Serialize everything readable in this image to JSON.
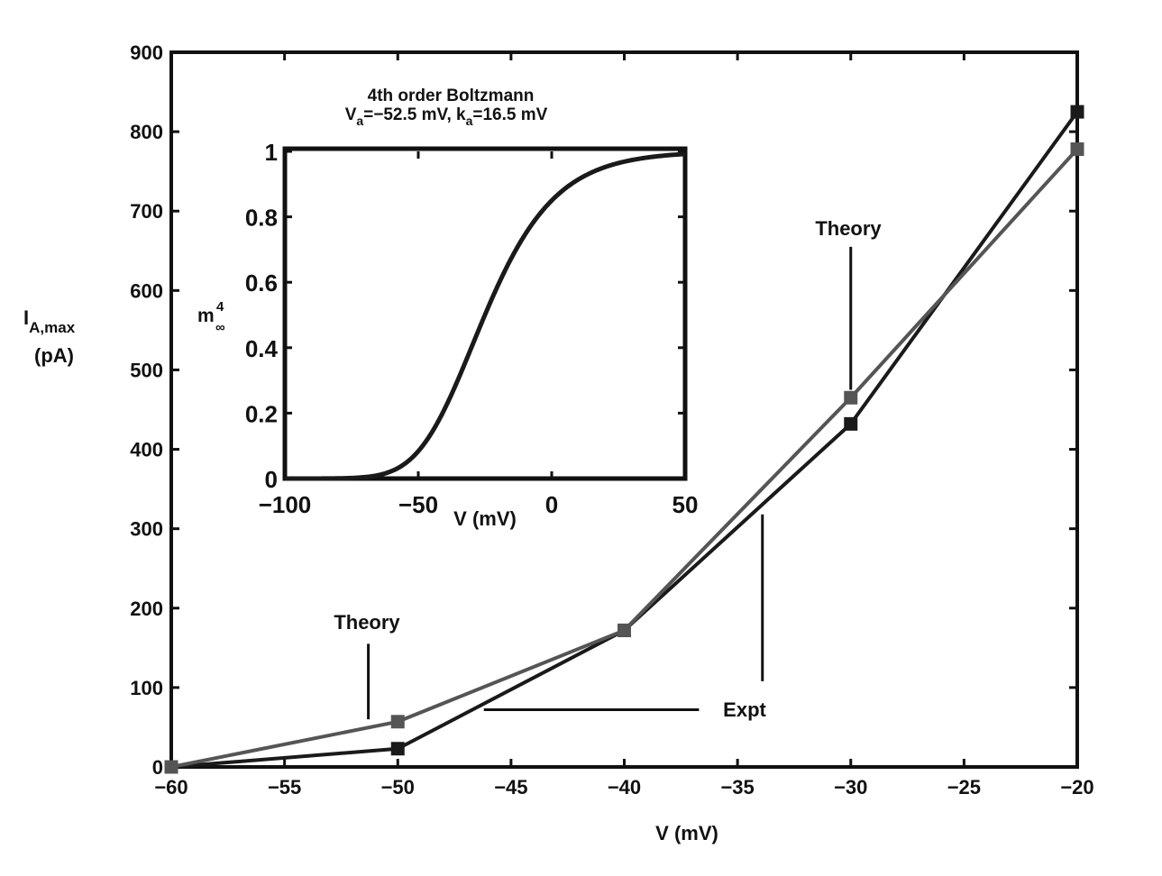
{
  "colors": {
    "expt": "#1a1a1a",
    "theory": "#555555",
    "axis": "#111111"
  },
  "chart_data": [
    {
      "type": "line",
      "title": "",
      "xlabel": "V (mV)",
      "ylabel_main": "I",
      "ylabel_sub": "A,max",
      "ylabel_unit": "(pA)",
      "xlim": [
        -60,
        -20
      ],
      "ylim": [
        0,
        900
      ],
      "x_ticks": [
        -60,
        -55,
        -50,
        -45,
        -40,
        -35,
        -30,
        -25,
        -20
      ],
      "x_tick_labels": [
        "−60",
        "−55",
        "−50",
        "−45",
        "−40",
        "−35",
        "−30",
        "−25",
        "−20"
      ],
      "y_ticks": [
        0,
        100,
        200,
        300,
        400,
        500,
        600,
        700,
        800,
        900
      ],
      "y_tick_labels": [
        "0",
        "100",
        "200",
        "300",
        "400",
        "500",
        "600",
        "700",
        "800",
        "900"
      ],
      "series": [
        {
          "name": "Expt",
          "x": [
            -60,
            -50,
            -40,
            -30,
            -20
          ],
          "y": [
            0,
            23,
            172,
            432,
            825
          ]
        },
        {
          "name": "Theory",
          "x": [
            -60,
            -50,
            -40,
            -30,
            -20
          ],
          "y": [
            0,
            57,
            172,
            465,
            778
          ]
        }
      ],
      "annotations": [
        {
          "text": "Theory",
          "pointer_x": -51.3,
          "pointer_y": [
            60,
            155
          ]
        },
        {
          "text": "Theory",
          "pointer_x": -30,
          "pointer_y": [
            475,
            655
          ]
        },
        {
          "text": "Expt",
          "pointer_x": [
            -46.2,
            -36.7
          ],
          "pointer_y": 72
        },
        {
          "text": "",
          "pointer_x": -33.9,
          "pointer_y": [
            108,
            318
          ]
        }
      ]
    },
    {
      "type": "line",
      "title_line1": "4th order Boltzmann",
      "title_line2": "Vₐ=−52.5 mV, kₐ=16.5 mV",
      "title_parts": {
        "v": "V",
        "sub1": "a",
        "mid": "=−52.5 mV, k",
        "sub2": "a",
        "end": "=16.5 mV"
      },
      "xlabel": "V (mV)",
      "ylabel_main": "m",
      "ylabel_sup": "4",
      "ylabel_sub": "∞",
      "xlim": [
        -100,
        50
      ],
      "ylim": [
        0,
        1
      ],
      "x_ticks": [
        -100,
        -50,
        0,
        50
      ],
      "x_tick_labels": [
        "−100",
        "−50",
        "0",
        "50"
      ],
      "y_ticks": [
        0,
        0.2,
        0.4,
        0.6,
        0.8,
        1
      ],
      "y_tick_labels": [
        "0",
        "0.2",
        "0.4",
        "0.6",
        "0.8",
        "1"
      ],
      "function": "boltzmann4",
      "Va": -52.5,
      "ka": 16.5,
      "curve_note": "curve computed as (1/(1+exp(-(V-Va)/ka)))^4; Va/ka are the printed parameters; sampled densely from x=-100 to x=50"
    }
  ]
}
